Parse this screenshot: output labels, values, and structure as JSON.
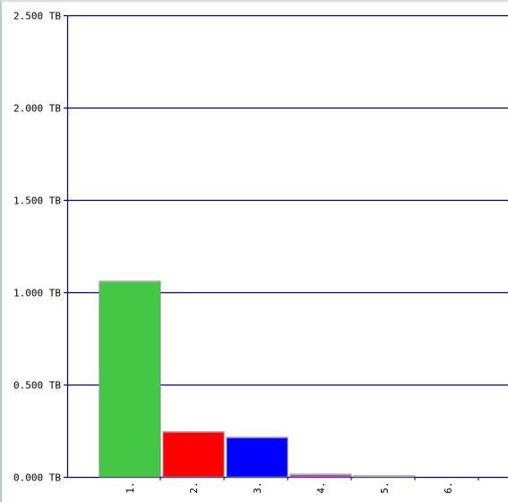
{
  "chart_data": {
    "type": "bar",
    "title": "",
    "xlabel": "",
    "ylabel": "",
    "unit": "TB",
    "ylim": [
      0,
      2.5
    ],
    "yticks": [
      {
        "value": 0.0,
        "label": "0.000 TB"
      },
      {
        "value": 0.5,
        "label": "0.500 TB"
      },
      {
        "value": 1.0,
        "label": "1.000 TB"
      },
      {
        "value": 1.5,
        "label": "1.500 TB"
      },
      {
        "value": 2.0,
        "label": "2.000 TB"
      },
      {
        "value": 2.5,
        "label": "2.500 TB"
      }
    ],
    "categories": [
      "1.",
      "2.",
      "3.",
      "4.",
      "5.",
      "6."
    ],
    "values": [
      1.06,
      0.245,
      0.215,
      0.015,
      0.006,
      0.0
    ],
    "colors": [
      "#44c744",
      "#ff0000",
      "#0000ff",
      "#cc33cc",
      "#5577aa",
      "#000080"
    ],
    "grid": true,
    "legend": "none"
  }
}
